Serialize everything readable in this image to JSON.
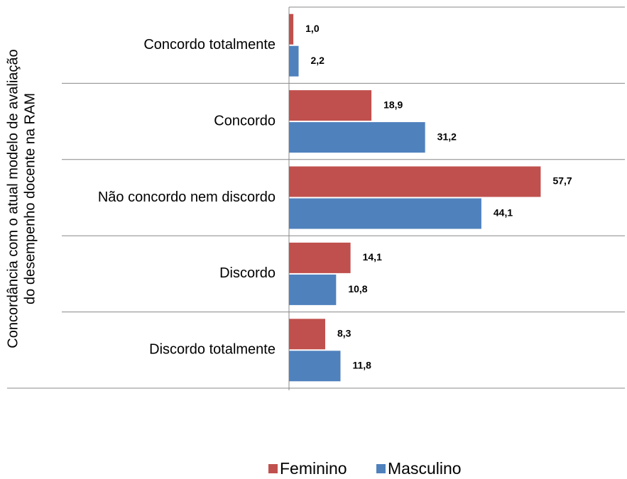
{
  "chart_data": {
    "type": "barh",
    "ylabel": [
      "Concordância com o atual modelo de avaliação",
      "do desempenho docente na RAM"
    ],
    "categories": [
      "Concordo totalmente",
      "Concordo",
      "Não concordo nem discordo",
      "Discordo",
      "Discordo totalmente"
    ],
    "series": [
      {
        "name": "Feminino",
        "color": "#c0504d",
        "values": [
          1.0,
          18.9,
          57.7,
          14.1,
          8.3
        ],
        "value_labels": [
          "1,0",
          "18,9",
          "57,7",
          "14,1",
          "8,3"
        ]
      },
      {
        "name": "Masculino",
        "color": "#4f81bd",
        "values": [
          2.2,
          31.2,
          44.1,
          10.8,
          11.8
        ],
        "value_labels": [
          "2,2",
          "31,2",
          "44,1",
          "10,8",
          "11,8"
        ]
      }
    ],
    "xlim": [
      0,
      77
    ]
  }
}
